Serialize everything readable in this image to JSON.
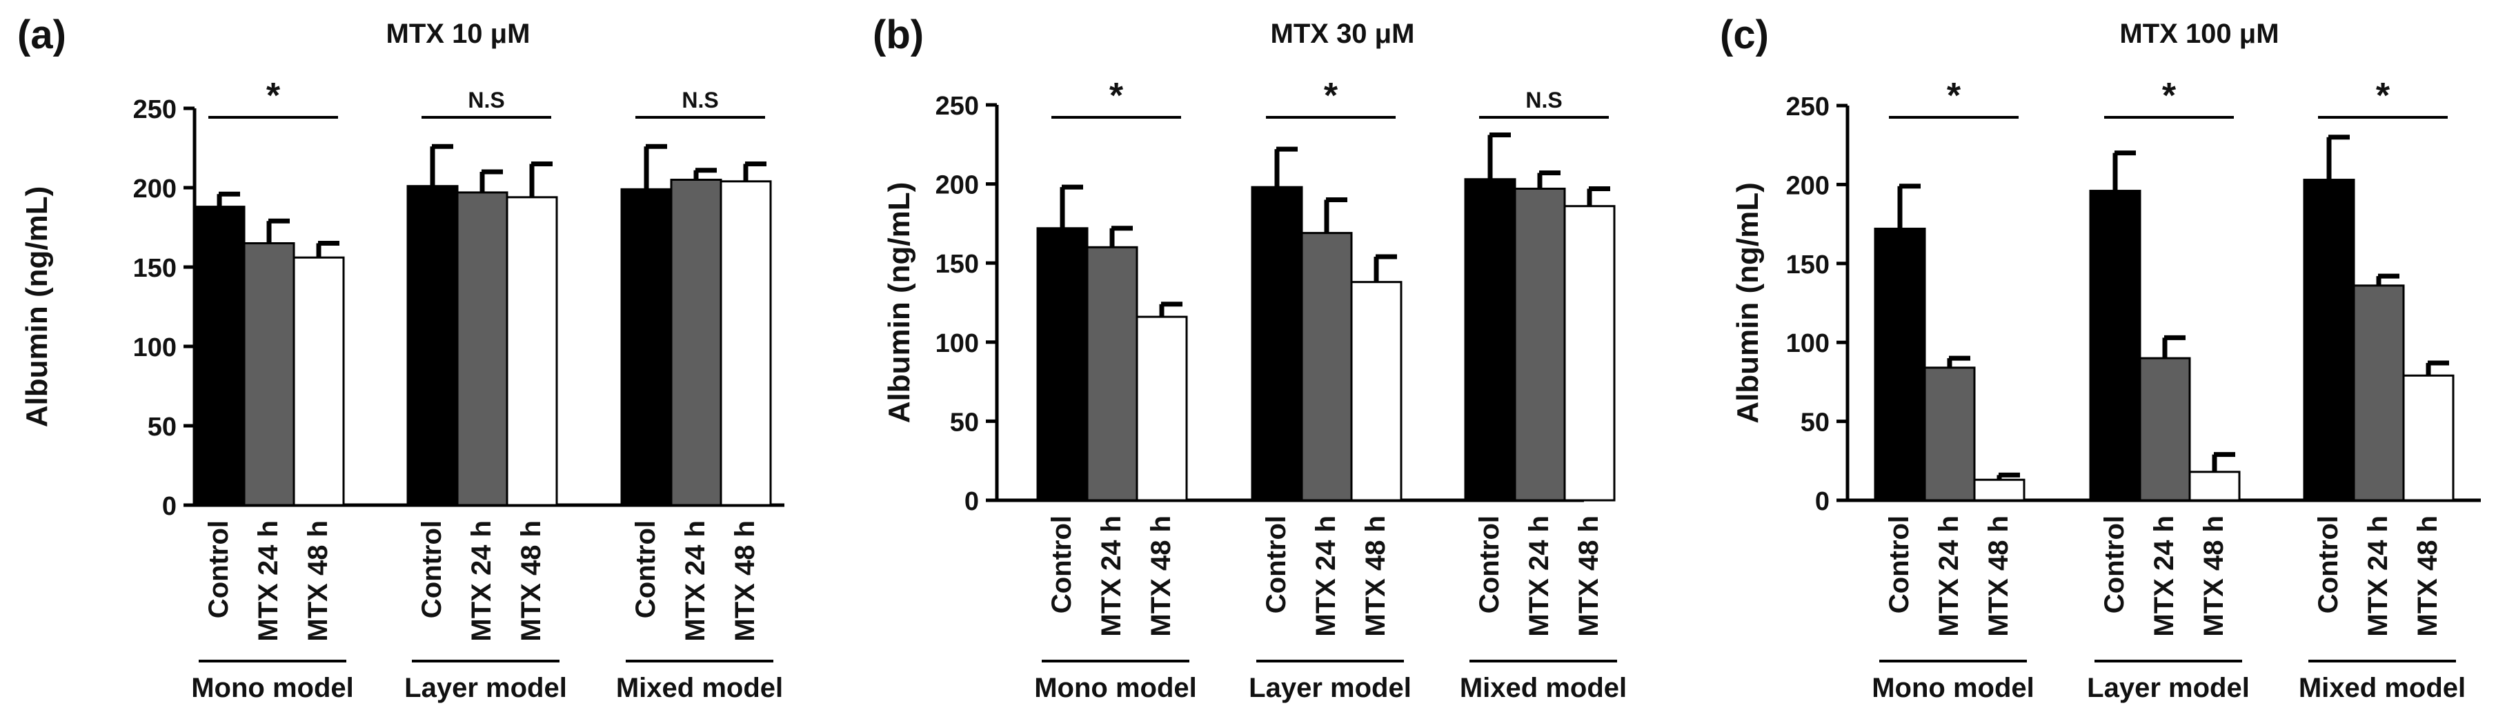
{
  "colors": {
    "control": "#000000",
    "mtx24": "#5f5f5f",
    "mtx48": "#ffffff",
    "stroke": "#000000"
  },
  "chart_data": [
    {
      "type": "bar",
      "panel_label": "(a)",
      "title": "MTX 10 μM",
      "ylabel": "Albumin (ng/mL)",
      "ylim": [
        0,
        250
      ],
      "yticks": [
        "0",
        "50",
        "100",
        "150",
        "200",
        "250"
      ],
      "groups": [
        "Mono model",
        "Layer model",
        "Mixed model"
      ],
      "categories": [
        "Control",
        "MTX 24 h",
        "MTX 48 h"
      ],
      "series": [
        {
          "name": "Control",
          "values": [
            188,
            201,
            199
          ],
          "errors": [
            8,
            25,
            27
          ]
        },
        {
          "name": "MTX 24 h",
          "values": [
            165,
            197,
            205
          ],
          "errors": [
            14,
            13,
            6
          ]
        },
        {
          "name": "MTX 48 h",
          "values": [
            156,
            194,
            204
          ],
          "errors": [
            9,
            21,
            11
          ]
        }
      ],
      "significance": [
        "*",
        "N.S",
        "N.S"
      ]
    },
    {
      "type": "bar",
      "panel_label": "(b)",
      "title": "MTX 30 μM",
      "ylabel": "Albumin (ng/mL)",
      "ylim": [
        0,
        250
      ],
      "yticks": [
        "0",
        "50",
        "100",
        "150",
        "200",
        "250"
      ],
      "groups": [
        "Mono model",
        "Layer model",
        "Mixed model"
      ],
      "categories": [
        "Control",
        "MTX 24 h",
        "MTX 48 h"
      ],
      "series": [
        {
          "name": "Control",
          "values": [
            172,
            198,
            203
          ],
          "errors": [
            26,
            24,
            28
          ]
        },
        {
          "name": "MTX 24 h",
          "values": [
            160,
            169,
            197
          ],
          "errors": [
            12,
            21,
            10
          ]
        },
        {
          "name": "MTX 48 h",
          "values": [
            116,
            138,
            186
          ],
          "errors": [
            8,
            16,
            11
          ]
        }
      ],
      "significance": [
        "*",
        "*",
        "N.S"
      ]
    },
    {
      "type": "bar",
      "panel_label": "(c)",
      "title": "MTX 100 μM",
      "ylabel": "Albumin (ng/mL)",
      "ylim": [
        0,
        250
      ],
      "yticks": [
        "0",
        "50",
        "100",
        "150",
        "200",
        "250"
      ],
      "groups": [
        "Mono model",
        "Layer model",
        "Mixed model"
      ],
      "categories": [
        "Control",
        "MTX 24 h",
        "MTX 48 h"
      ],
      "series": [
        {
          "name": "Control",
          "values": [
            172,
            196,
            203
          ],
          "errors": [
            27,
            24,
            27
          ]
        },
        {
          "name": "MTX 24 h",
          "values": [
            84,
            90,
            136
          ],
          "errors": [
            6,
            13,
            6
          ]
        },
        {
          "name": "MTX 48 h",
          "values": [
            13,
            18,
            79
          ],
          "errors": [
            3,
            11,
            8
          ]
        }
      ],
      "significance": [
        "*",
        "*",
        "*"
      ]
    }
  ]
}
